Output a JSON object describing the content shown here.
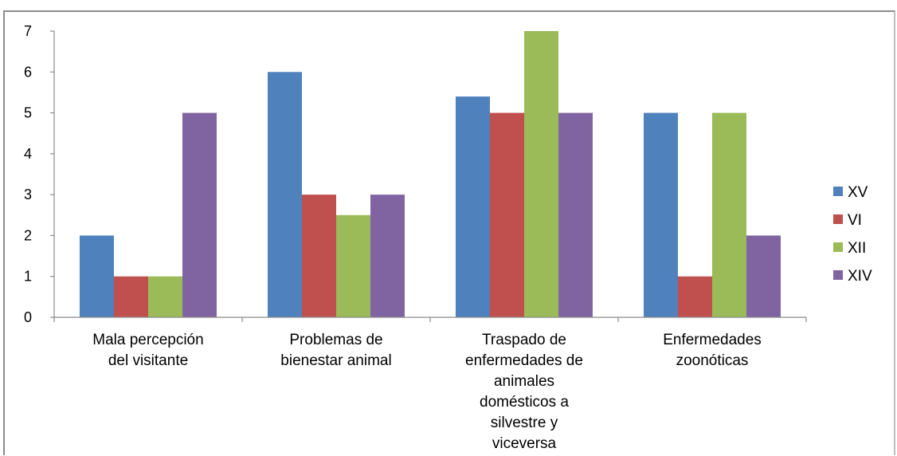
{
  "chart_data": {
    "type": "bar",
    "title": "",
    "xlabel": "",
    "ylabel": "",
    "ylim": [
      0,
      7
    ],
    "yticks": [
      0,
      1,
      2,
      3,
      4,
      5,
      6,
      7
    ],
    "grid": false,
    "legend_position": "right",
    "categories": [
      [
        "Mala percepción",
        "del visitante"
      ],
      [
        "Problemas de",
        "bienestar animal"
      ],
      [
        "Traspado de",
        "enfermedades de",
        "animales",
        "domésticos a",
        "silvestre y",
        "viceversa"
      ],
      [
        "Enfermedades",
        "zoonóticas"
      ]
    ],
    "series": [
      {
        "name": "XV",
        "color": "#4f81bd",
        "values": [
          2,
          6,
          5.4,
          5
        ]
      },
      {
        "name": "VI",
        "color": "#c0504d",
        "values": [
          1,
          3,
          5,
          1
        ]
      },
      {
        "name": "XII",
        "color": "#9bbb59",
        "values": [
          1,
          2.5,
          7,
          5
        ]
      },
      {
        "name": "XIV",
        "color": "#8064a2",
        "values": [
          5,
          3,
          5,
          2
        ]
      }
    ]
  }
}
